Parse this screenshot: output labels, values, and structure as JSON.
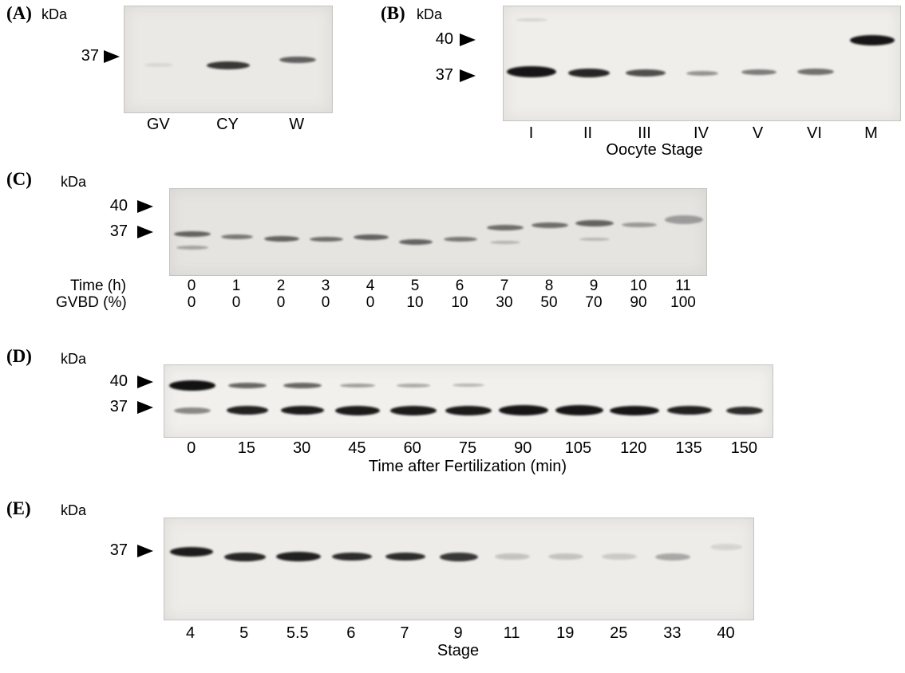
{
  "figure": {
    "panel_a": {
      "label": "(A)",
      "kda": "kDa",
      "marker_37": "37",
      "lanes": [
        "GV",
        "CY",
        "W"
      ],
      "blot": {
        "n_lanes": 3,
        "bands": [
          {
            "lane": 0,
            "y": 0.55,
            "w": 36,
            "h": 5,
            "o": 0.08
          },
          {
            "lane": 1,
            "y": 0.56,
            "w": 54,
            "h": 10,
            "o": 0.8
          },
          {
            "lane": 2,
            "y": 0.5,
            "w": 46,
            "h": 8,
            "o": 0.62
          }
        ]
      }
    },
    "panel_b": {
      "label": "(B)",
      "kda": "kDa",
      "marker_40": "40",
      "marker_37": "37",
      "lanes": [
        "I",
        "II",
        "III",
        "IV",
        "V",
        "VI",
        "M"
      ],
      "axis_title": "Oocyte Stage",
      "blot": {
        "n_lanes": 7,
        "bands": [
          {
            "lane": 0,
            "y": 0.12,
            "w": 40,
            "h": 4,
            "o": 0.1
          },
          {
            "lane": 0,
            "y": 0.57,
            "w": 62,
            "h": 14,
            "o": 0.95
          },
          {
            "lane": 1,
            "y": 0.585,
            "w": 52,
            "h": 11,
            "o": 0.88
          },
          {
            "lane": 2,
            "y": 0.585,
            "w": 50,
            "h": 9,
            "o": 0.7
          },
          {
            "lane": 3,
            "y": 0.585,
            "w": 40,
            "h": 6,
            "o": 0.4
          },
          {
            "lane": 4,
            "y": 0.578,
            "w": 44,
            "h": 7,
            "o": 0.5
          },
          {
            "lane": 5,
            "y": 0.575,
            "w": 46,
            "h": 8,
            "o": 0.55
          },
          {
            "lane": 6,
            "y": 0.3,
            "w": 56,
            "h": 13,
            "o": 0.95
          }
        ]
      }
    },
    "panel_c": {
      "label": "(C)",
      "kda": "kDa",
      "marker_40": "40",
      "marker_37": "37",
      "row1_label": "Time (h)",
      "row1_values": [
        "0",
        "1",
        "2",
        "3",
        "4",
        "5",
        "6",
        "7",
        "8",
        "9",
        "10",
        "11"
      ],
      "row2_label": "GVBD (%)",
      "row2_values": [
        "0",
        "0",
        "0",
        "0",
        "0",
        "10",
        "10",
        "30",
        "50",
        "70",
        "90",
        "100"
      ],
      "blot": {
        "n_lanes": 12,
        "bands": [
          {
            "lane": 0,
            "y": 0.52,
            "w": 46,
            "h": 7,
            "o": 0.6
          },
          {
            "lane": 0,
            "y": 0.68,
            "w": 40,
            "h": 5,
            "o": 0.3
          },
          {
            "lane": 1,
            "y": 0.56,
            "w": 40,
            "h": 6,
            "o": 0.5
          },
          {
            "lane": 2,
            "y": 0.58,
            "w": 44,
            "h": 7,
            "o": 0.6
          },
          {
            "lane": 3,
            "y": 0.58,
            "w": 42,
            "h": 6,
            "o": 0.55
          },
          {
            "lane": 4,
            "y": 0.56,
            "w": 44,
            "h": 7,
            "o": 0.6
          },
          {
            "lane": 5,
            "y": 0.62,
            "w": 42,
            "h": 7,
            "o": 0.6
          },
          {
            "lane": 6,
            "y": 0.58,
            "w": 42,
            "h": 6,
            "o": 0.5
          },
          {
            "lane": 7,
            "y": 0.45,
            "w": 46,
            "h": 7,
            "o": 0.55
          },
          {
            "lane": 7,
            "y": 0.62,
            "w": 38,
            "h": 4,
            "o": 0.22
          },
          {
            "lane": 8,
            "y": 0.42,
            "w": 46,
            "h": 7,
            "o": 0.55
          },
          {
            "lane": 9,
            "y": 0.4,
            "w": 48,
            "h": 8,
            "o": 0.6
          },
          {
            "lane": 9,
            "y": 0.58,
            "w": 38,
            "h": 4,
            "o": 0.2
          },
          {
            "lane": 10,
            "y": 0.42,
            "w": 44,
            "h": 6,
            "o": 0.35
          },
          {
            "lane": 11,
            "y": 0.36,
            "w": 48,
            "h": 11,
            "o": 0.33
          }
        ]
      }
    },
    "panel_d": {
      "label": "(D)",
      "kda": "kDa",
      "marker_40": "40",
      "marker_37": "37",
      "lanes": [
        "0",
        "15",
        "30",
        "45",
        "60",
        "75",
        "90",
        "105",
        "120",
        "135",
        "150"
      ],
      "axis_title": "Time after Fertilization (min)",
      "blot": {
        "n_lanes": 11,
        "bands": [
          {
            "lane": 0,
            "y": 0.28,
            "w": 58,
            "h": 13,
            "o": 0.97
          },
          {
            "lane": 0,
            "y": 0.63,
            "w": 46,
            "h": 8,
            "o": 0.45
          },
          {
            "lane": 1,
            "y": 0.28,
            "w": 48,
            "h": 7,
            "o": 0.6
          },
          {
            "lane": 1,
            "y": 0.63,
            "w": 52,
            "h": 11,
            "o": 0.9
          },
          {
            "lane": 2,
            "y": 0.28,
            "w": 48,
            "h": 7,
            "o": 0.6
          },
          {
            "lane": 2,
            "y": 0.63,
            "w": 54,
            "h": 11,
            "o": 0.92
          },
          {
            "lane": 3,
            "y": 0.28,
            "w": 44,
            "h": 5,
            "o": 0.35
          },
          {
            "lane": 3,
            "y": 0.63,
            "w": 56,
            "h": 12,
            "o": 0.93
          },
          {
            "lane": 4,
            "y": 0.28,
            "w": 42,
            "h": 5,
            "o": 0.3
          },
          {
            "lane": 4,
            "y": 0.63,
            "w": 58,
            "h": 12,
            "o": 0.93
          },
          {
            "lane": 5,
            "y": 0.28,
            "w": 40,
            "h": 4,
            "o": 0.25
          },
          {
            "lane": 5,
            "y": 0.63,
            "w": 58,
            "h": 12,
            "o": 0.93
          },
          {
            "lane": 6,
            "y": 0.63,
            "w": 62,
            "h": 13,
            "o": 0.95
          },
          {
            "lane": 7,
            "y": 0.63,
            "w": 60,
            "h": 13,
            "o": 0.95
          },
          {
            "lane": 8,
            "y": 0.63,
            "w": 62,
            "h": 12,
            "o": 0.95
          },
          {
            "lane": 9,
            "y": 0.63,
            "w": 56,
            "h": 11,
            "o": 0.9
          },
          {
            "lane": 10,
            "y": 0.63,
            "w": 46,
            "h": 10,
            "o": 0.85
          }
        ]
      }
    },
    "panel_e": {
      "label": "(E)",
      "kda": "kDa",
      "marker_37": "37",
      "lanes": [
        "4",
        "5",
        "5.5",
        "6",
        "7",
        "9",
        "11",
        "19",
        "25",
        "33",
        "40"
      ],
      "axis_title": "Stage",
      "blot": {
        "n_lanes": 11,
        "bands": [
          {
            "lane": 0,
            "y": 0.33,
            "w": 54,
            "h": 12,
            "o": 0.92
          },
          {
            "lane": 1,
            "y": 0.38,
            "w": 52,
            "h": 11,
            "o": 0.88
          },
          {
            "lane": 2,
            "y": 0.38,
            "w": 56,
            "h": 12,
            "o": 0.9
          },
          {
            "lane": 3,
            "y": 0.38,
            "w": 50,
            "h": 10,
            "o": 0.85
          },
          {
            "lane": 4,
            "y": 0.38,
            "w": 50,
            "h": 10,
            "o": 0.85
          },
          {
            "lane": 5,
            "y": 0.38,
            "w": 48,
            "h": 11,
            "o": 0.8
          },
          {
            "lane": 6,
            "y": 0.38,
            "w": 44,
            "h": 8,
            "o": 0.18
          },
          {
            "lane": 7,
            "y": 0.38,
            "w": 44,
            "h": 8,
            "o": 0.18
          },
          {
            "lane": 8,
            "y": 0.38,
            "w": 44,
            "h": 8,
            "o": 0.15
          },
          {
            "lane": 9,
            "y": 0.38,
            "w": 44,
            "h": 9,
            "o": 0.3
          },
          {
            "lane": 10,
            "y": 0.28,
            "w": 40,
            "h": 8,
            "o": 0.1
          }
        ]
      }
    }
  }
}
